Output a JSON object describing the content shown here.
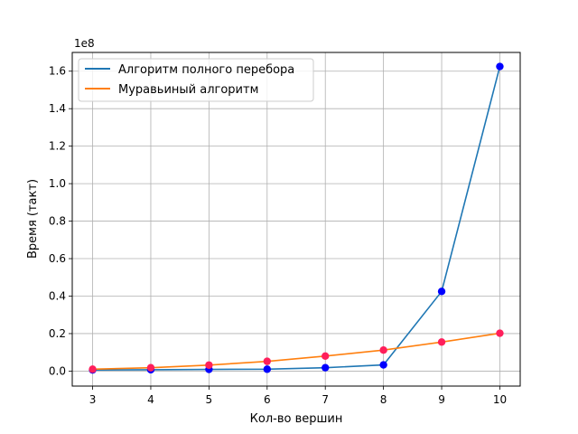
{
  "chart_data": {
    "type": "line",
    "title": "",
    "xlabel": "Кол-во вершин",
    "ylabel": "Время (такт)",
    "y_offset_text": "1e8",
    "x": [
      3,
      4,
      5,
      6,
      7,
      8,
      9,
      10
    ],
    "x_ticks": [
      "3",
      "4",
      "5",
      "6",
      "7",
      "8",
      "9",
      "10"
    ],
    "y_ticks": [
      "0.0",
      "0.2",
      "0.4",
      "0.6",
      "0.8",
      "1.0",
      "1.2",
      "1.4",
      "1.6"
    ],
    "xlim": [
      2.65,
      10.35
    ],
    "ylim": [
      -0.08,
      1.7
    ],
    "grid": true,
    "legend_position": "top-left",
    "series": [
      {
        "name": "Алгоритм полного перебора",
        "color": "#1f77b4",
        "marker_color": "#0000ff",
        "values": [
          0.006,
          0.007,
          0.009,
          0.01,
          0.018,
          0.033,
          0.425,
          1.625
        ]
      },
      {
        "name": "Муравьиный алгоритм",
        "color": "#ff7f0e",
        "marker_color": "#ff1f5b",
        "values": [
          0.01,
          0.018,
          0.032,
          0.052,
          0.08,
          0.112,
          0.155,
          0.202
        ]
      }
    ]
  }
}
